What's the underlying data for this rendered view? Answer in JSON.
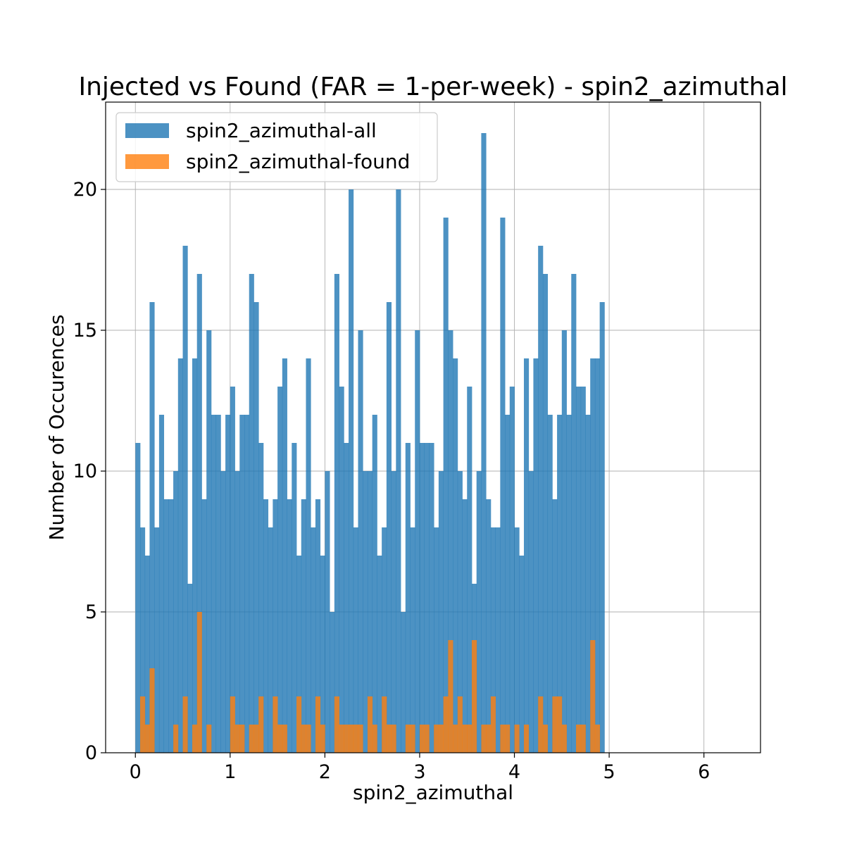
{
  "chart_data": {
    "type": "bar",
    "title": "Injected vs Found (FAR = 1-per-week) - spin2_azimuthal",
    "xlabel": "spin2_azimuthal",
    "ylabel": "Number of Occurences",
    "xlim": [
      -0.314,
      6.597
    ],
    "ylim": [
      0,
      23.1
    ],
    "xticks": [
      0,
      1,
      2,
      3,
      4,
      5,
      6
    ],
    "yticks": [
      0,
      5,
      10,
      15,
      20
    ],
    "grid": true,
    "legend_position": "top-left",
    "bin_start": 0.0,
    "bin_width": 0.05,
    "series": [
      {
        "name": "spin2_azimuthal-all",
        "color": "#1f77b4",
        "values": [
          11,
          8,
          7,
          16,
          8,
          12,
          9,
          9,
          10,
          14,
          18,
          6,
          14,
          17,
          9,
          15,
          12,
          12,
          10,
          12,
          13,
          10,
          12,
          12,
          17,
          16,
          11,
          9,
          8,
          9,
          13,
          14,
          9,
          11,
          7,
          9,
          14,
          8,
          9,
          7,
          10,
          5,
          17,
          13,
          11,
          20,
          8,
          15,
          10,
          10,
          12,
          7,
          8,
          16,
          10,
          20,
          5,
          11,
          8,
          15,
          11,
          11,
          11,
          8,
          10,
          19,
          15,
          14,
          10,
          9,
          13,
          6,
          10,
          22,
          9,
          8,
          8,
          19,
          12,
          13,
          8,
          7,
          14,
          10,
          14,
          18,
          17,
          12,
          9,
          12,
          15,
          12,
          17,
          13,
          13,
          12,
          14,
          14,
          16
        ]
      },
      {
        "name": "spin2_azimuthal-found",
        "color": "#ff7f0e",
        "values": [
          0,
          2,
          1,
          3,
          0,
          0,
          0,
          0,
          1,
          0,
          2,
          0,
          1,
          5,
          0,
          1,
          0,
          0,
          0,
          0,
          2,
          1,
          1,
          0,
          1,
          1,
          2,
          0,
          0,
          2,
          1,
          1,
          0,
          0,
          2,
          1,
          1,
          0,
          2,
          1,
          0,
          0,
          2,
          1,
          1,
          1,
          1,
          1,
          0,
          2,
          1,
          0,
          2,
          1,
          1,
          0,
          0,
          1,
          1,
          0,
          1,
          1,
          0,
          1,
          1,
          2,
          4,
          1,
          2,
          1,
          1,
          4,
          0,
          1,
          1,
          2,
          0,
          1,
          1,
          0,
          1,
          0,
          1,
          0,
          0,
          2,
          1,
          0,
          2,
          2,
          1,
          0,
          0,
          1,
          1,
          0,
          4,
          1,
          0
        ]
      }
    ]
  }
}
